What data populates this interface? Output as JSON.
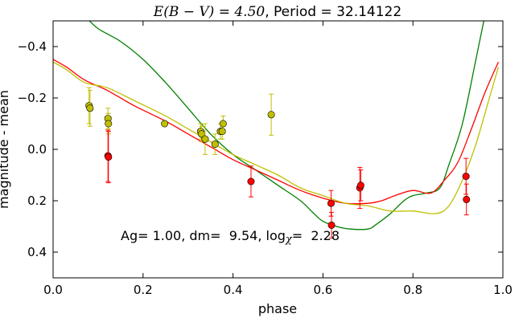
{
  "chart_data": {
    "type": "scatter",
    "title_math": "E(B − V) = 4.50",
    "title_text": ", Period = 32.14122",
    "xlabel": "phase",
    "ylabel": "magnitude - mean",
    "xlim": [
      0.0,
      1.0
    ],
    "ylim": [
      0.5,
      -0.5
    ],
    "y_inverted": true,
    "xticks": [
      "0.0",
      "0.2",
      "0.4",
      "0.6",
      "0.8",
      "1.0"
    ],
    "yticks": [
      "−0.4",
      "−0.2",
      "0.0",
      "0.2",
      "0.4"
    ],
    "annotation": {
      "prefix": "Ag= 1.00, dm=  9.54, log",
      "chi": "χ",
      "suffix": "=  2.28"
    },
    "series": [
      {
        "kind": "points",
        "color": "#bfbf00",
        "points": [
          {
            "x": 0.08,
            "y": -0.17,
            "err": 0.07
          },
          {
            "x": 0.082,
            "y": -0.16,
            "err": 0.07
          },
          {
            "x": 0.122,
            "y": -0.12,
            "err": 0.04
          },
          {
            "x": 0.123,
            "y": -0.1,
            "err": 0.04
          },
          {
            "x": 0.248,
            "y": -0.1,
            "err": 0.0
          },
          {
            "x": 0.328,
            "y": -0.07,
            "err": 0.03
          },
          {
            "x": 0.33,
            "y": -0.06,
            "err": 0.03
          },
          {
            "x": 0.338,
            "y": -0.04,
            "err": 0.06
          },
          {
            "x": 0.36,
            "y": -0.02,
            "err": 0.04
          },
          {
            "x": 0.372,
            "y": -0.07,
            "err": 0.03
          },
          {
            "x": 0.376,
            "y": -0.07,
            "err": 0.03
          },
          {
            "x": 0.378,
            "y": -0.1,
            "err": 0.03
          },
          {
            "x": 0.485,
            "y": -0.135,
            "err": 0.08
          }
        ]
      },
      {
        "kind": "points",
        "color": "#ff0000",
        "points": [
          {
            "x": 0.122,
            "y": 0.025,
            "err": 0.1
          },
          {
            "x": 0.123,
            "y": 0.03,
            "err": 0.1
          },
          {
            "x": 0.44,
            "y": 0.125,
            "err": 0.06
          },
          {
            "x": 0.618,
            "y": 0.21,
            "err": 0.05
          },
          {
            "x": 0.619,
            "y": 0.295,
            "err": 0.05
          },
          {
            "x": 0.682,
            "y": 0.15,
            "err": 0.08
          },
          {
            "x": 0.684,
            "y": 0.14,
            "err": 0.06
          },
          {
            "x": 0.918,
            "y": 0.105,
            "err": 0.07
          },
          {
            "x": 0.919,
            "y": 0.195,
            "err": 0.06
          }
        ]
      },
      {
        "kind": "curve",
        "color": "#008000",
        "x": [
          0.07,
          0.1,
          0.15,
          0.2,
          0.25,
          0.3,
          0.35,
          0.4,
          0.45,
          0.5,
          0.55,
          0.58,
          0.6,
          0.63,
          0.66,
          0.7,
          0.72,
          0.75,
          0.78,
          0.8,
          0.83,
          0.86,
          0.88,
          0.91,
          0.94,
          0.96
        ],
        "y": [
          -0.52,
          -0.47,
          -0.42,
          -0.35,
          -0.26,
          -0.16,
          -0.06,
          0.02,
          0.08,
          0.14,
          0.2,
          0.25,
          0.28,
          0.3,
          0.31,
          0.31,
          0.29,
          0.25,
          0.2,
          0.18,
          0.17,
          0.15,
          0.06,
          -0.1,
          -0.35,
          -0.52
        ]
      },
      {
        "kind": "curve",
        "color": "#ff0000",
        "x": [
          0.0,
          0.03,
          0.07,
          0.12,
          0.18,
          0.25,
          0.3,
          0.35,
          0.4,
          0.45,
          0.5,
          0.55,
          0.6,
          0.65,
          0.7,
          0.73,
          0.76,
          0.8,
          0.84,
          0.87,
          0.9,
          0.93,
          0.96,
          0.99
        ],
        "y": [
          -0.35,
          -0.32,
          -0.27,
          -0.23,
          -0.17,
          -0.11,
          -0.06,
          -0.01,
          0.04,
          0.08,
          0.12,
          0.16,
          0.19,
          0.21,
          0.21,
          0.2,
          0.18,
          0.16,
          0.17,
          0.12,
          0.05,
          -0.08,
          -0.22,
          -0.34
        ]
      },
      {
        "kind": "curve",
        "color": "#bfbf00",
        "x": [
          0.0,
          0.03,
          0.07,
          0.12,
          0.18,
          0.25,
          0.3,
          0.35,
          0.4,
          0.45,
          0.5,
          0.55,
          0.6,
          0.65,
          0.7,
          0.75,
          0.8,
          0.85,
          0.88,
          0.91,
          0.94,
          0.97,
          0.99
        ],
        "y": [
          -0.34,
          -0.31,
          -0.26,
          -0.24,
          -0.19,
          -0.13,
          -0.08,
          -0.03,
          0.02,
          0.06,
          0.1,
          0.15,
          0.18,
          0.21,
          0.22,
          0.24,
          0.24,
          0.25,
          0.22,
          0.12,
          -0.02,
          -0.2,
          -0.32
        ]
      }
    ]
  }
}
